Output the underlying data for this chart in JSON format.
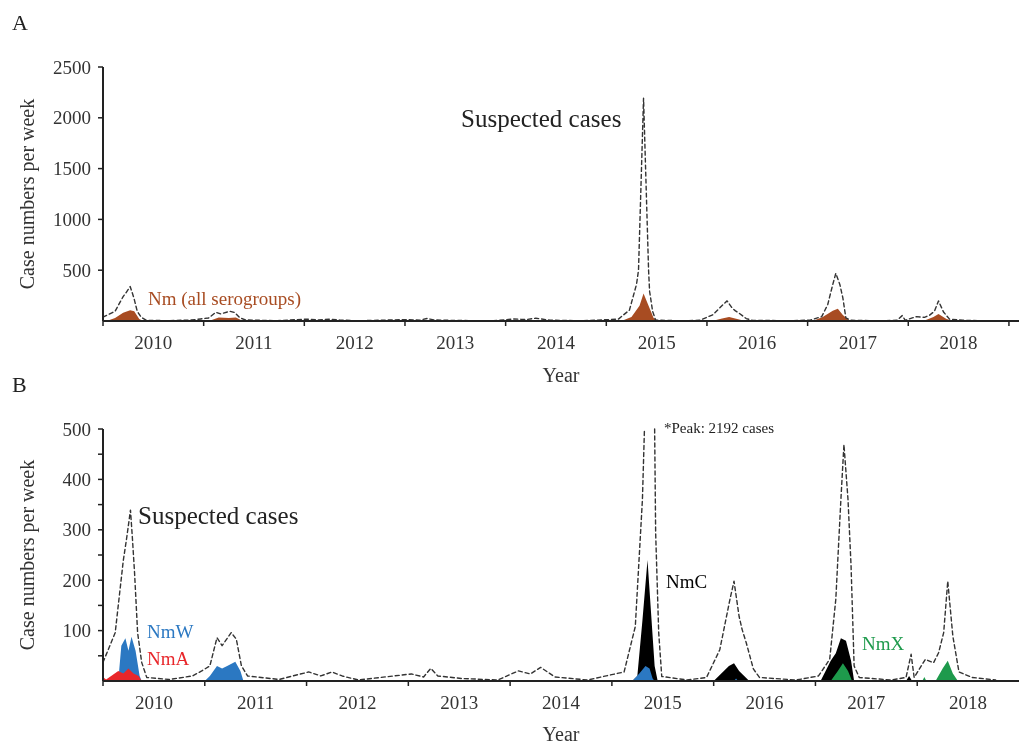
{
  "chart_data": [
    {
      "type": "area",
      "title": "A",
      "xlabel": "Year",
      "ylabel": "Case numbers per week",
      "xlim": [
        2010,
        2019.1
      ],
      "ylim": [
        0,
        2500
      ],
      "xticks": [
        {
          "value": 2010,
          "label": null
        },
        {
          "value": 2010.5,
          "label": "2010"
        },
        {
          "value": 2011,
          "label": null
        },
        {
          "value": 2011.5,
          "label": "2011"
        },
        {
          "value": 2012,
          "label": null
        },
        {
          "value": 2012.5,
          "label": "2012"
        },
        {
          "value": 2013,
          "label": null
        },
        {
          "value": 2013.5,
          "label": "2013"
        },
        {
          "value": 2014,
          "label": null
        },
        {
          "value": 2014.5,
          "label": "2014"
        },
        {
          "value": 2015,
          "label": null
        },
        {
          "value": 2015.5,
          "label": "2015"
        },
        {
          "value": 2016,
          "label": null
        },
        {
          "value": 2016.5,
          "label": "2016"
        },
        {
          "value": 2017,
          "label": null
        },
        {
          "value": 2017.5,
          "label": "2017"
        },
        {
          "value": 2018,
          "label": null
        },
        {
          "value": 2018.5,
          "label": "2018"
        },
        {
          "value": 2019,
          "label": null
        }
      ],
      "yticks": [
        500,
        1000,
        1500,
        2000,
        2500
      ],
      "series": [
        {
          "name": "Nm (all serogroups)",
          "color": "#a84c22",
          "x": [
            2010,
            2010.05,
            2010.12,
            2010.2,
            2010.27,
            2010.31,
            2010.36,
            2010.4,
            2011.04,
            2011.08,
            2011.15,
            2011.25,
            2011.32,
            2011.38,
            2011.42,
            2015.15,
            2015.25,
            2015.33,
            2015.37,
            2015.42,
            2015.47,
            2015.52,
            2016.05,
            2016.15,
            2016.22,
            2016.3,
            2016.38,
            2017.05,
            2017.15,
            2017.25,
            2017.3,
            2017.35,
            2017.42,
            2018.15,
            2018.25,
            2018.3,
            2018.38,
            2018.45
          ],
          "values": [
            0,
            5,
            30,
            80,
            105,
            95,
            20,
            0,
            0,
            10,
            35,
            30,
            35,
            5,
            0,
            0,
            40,
            150,
            270,
            150,
            30,
            0,
            0,
            25,
            40,
            20,
            0,
            0,
            40,
            100,
            120,
            60,
            0,
            0,
            40,
            70,
            20,
            0
          ]
        },
        {
          "name": "Suspected cases",
          "type": "line",
          "line_style": "dashed",
          "color": "#333333",
          "x": [
            2010,
            2010.12,
            2010.2,
            2010.23,
            2010.27,
            2010.29,
            2010.31,
            2010.34,
            2010.38,
            2010.43,
            2010.65,
            2010.88,
            2010.97,
            2011.05,
            2011.12,
            2011.17,
            2011.26,
            2011.31,
            2011.36,
            2011.42,
            2011.73,
            2012.02,
            2012.14,
            2012.25,
            2012.35,
            2012.51,
            2013.03,
            2013.15,
            2013.22,
            2013.29,
            2013.52,
            2013.88,
            2014.08,
            2014.2,
            2014.3,
            2014.44,
            2014.76,
            2015.12,
            2015.23,
            2015.3,
            2015.32,
            2015.37,
            2015.42,
            2015.43,
            2015.46,
            2015.49,
            2015.74,
            2015.93,
            2016.06,
            2016.16,
            2016.2,
            2016.25,
            2016.28,
            2016.32,
            2016.39,
            2016.45,
            2016.81,
            2017.03,
            2017.14,
            2017.2,
            2017.25,
            2017.28,
            2017.32,
            2017.35,
            2017.38,
            2017.43,
            2017.74,
            2017.89,
            2017.94,
            2017.97,
            2018.04,
            2018.08,
            2018.16,
            2018.21,
            2018.26,
            2018.3,
            2018.35,
            2018.41,
            2018.54,
            2018.77
          ],
          "values": [
            37,
            96,
            240,
            280,
            339,
            280,
            215,
            96,
            37,
            7,
            3,
            10,
            20,
            30,
            86,
            70,
            96,
            83,
            30,
            10,
            3,
            18,
            10,
            18,
            10,
            2,
            14,
            8,
            25,
            10,
            5,
            2,
            20,
            14,
            27,
            8,
            2,
            18,
            108,
            360,
            500,
            2192,
            500,
            294,
            96,
            9,
            2,
            7,
            62,
            162,
            198,
            128,
            102,
            76,
            24,
            7,
            2,
            10,
            43,
            162,
            360,
            469,
            360,
            228,
            30,
            7,
            2,
            7,
            53,
            7,
            30,
            43,
            36,
            56,
            96,
            198,
            89,
            18,
            7,
            2
          ]
        }
      ]
    },
    {
      "type": "area",
      "title": "B",
      "xlabel": "Year",
      "ylabel": "Case numbers per week",
      "annotations": [
        "*Peak: 2192 cases"
      ],
      "xlim": [
        2010,
        2019
      ],
      "ylim": [
        0,
        500
      ],
      "xticks": [
        {
          "value": 2010,
          "label": null
        },
        {
          "value": 2010.5,
          "label": "2010"
        },
        {
          "value": 2011,
          "label": null
        },
        {
          "value": 2011.5,
          "label": "2011"
        },
        {
          "value": 2012,
          "label": null
        },
        {
          "value": 2012.5,
          "label": "2012"
        },
        {
          "value": 2013,
          "label": null
        },
        {
          "value": 2013.5,
          "label": "2013"
        },
        {
          "value": 2014,
          "label": null
        },
        {
          "value": 2014.5,
          "label": "2014"
        },
        {
          "value": 2015,
          "label": null
        },
        {
          "value": 2015.5,
          "label": "2015"
        },
        {
          "value": 2016,
          "label": null
        },
        {
          "value": 2016.5,
          "label": "2016"
        },
        {
          "value": 2017,
          "label": null
        },
        {
          "value": 2017.5,
          "label": "2017"
        },
        {
          "value": 2018,
          "label": null
        },
        {
          "value": 2018.5,
          "label": "2018"
        }
      ],
      "yticks": [
        {
          "value": 50,
          "label": null
        },
        100,
        {
          "value": 150,
          "label": null
        },
        200,
        {
          "value": 250,
          "label": null
        },
        300,
        {
          "value": 350,
          "label": null
        },
        400,
        {
          "value": 450,
          "label": null
        },
        500
      ],
      "series": [
        {
          "name": "NmC",
          "color": "#000000",
          "x": [
            2015.2,
            2015.25,
            2015.3,
            2015.35,
            2015.38,
            2015.42,
            2015.45,
            2016,
            2016.05,
            2016.1,
            2016.15,
            2016.2,
            2016.25,
            2016.3,
            2016.35,
            2017.05,
            2017.1,
            2017.15,
            2017.2,
            2017.25,
            2017.3,
            2017.35,
            2017.38,
            2017.89,
            2017.92,
            2017.95
          ],
          "values": [
            0,
            10,
            120,
            240,
            150,
            30,
            0,
            0,
            10,
            20,
            30,
            35,
            20,
            10,
            0,
            0,
            20,
            40,
            55,
            85,
            80,
            40,
            0,
            0,
            10,
            0
          ]
        },
        {
          "name": "NmW",
          "color": "#2b78c2",
          "x": [
            2010.15,
            2010.18,
            2010.22,
            2010.25,
            2010.28,
            2010.32,
            2010.36,
            2010.38,
            2011,
            2011.05,
            2011.12,
            2011.17,
            2011.22,
            2011.3,
            2011.35,
            2011.38,
            2015.2,
            2015.27,
            2015.33,
            2015.37,
            2015.4,
            2015.42,
            2016.2,
            2016.22,
            2016.24
          ],
          "values": [
            0,
            70,
            85,
            60,
            88,
            60,
            10,
            0,
            0,
            10,
            30,
            25,
            30,
            38,
            20,
            0,
            0,
            15,
            30,
            25,
            5,
            0,
            0,
            5,
            0
          ]
        },
        {
          "name": "NmA",
          "color": "#e8262a",
          "x": [
            2010,
            2010.03,
            2010.08,
            2010.15,
            2010.2,
            2010.25,
            2010.3,
            2010.35,
            2010.38
          ],
          "values": [
            8,
            3,
            10,
            20,
            15,
            25,
            15,
            10,
            0
          ]
        },
        {
          "name": "NmX",
          "color": "#1e9a4c",
          "x": [
            2017.15,
            2017.22,
            2017.27,
            2017.32,
            2017.36,
            2018.05,
            2018.07,
            2018.09,
            2018.18,
            2018.25,
            2018.3,
            2018.35,
            2018.4
          ],
          "values": [
            0,
            20,
            35,
            20,
            0,
            0,
            8,
            0,
            0,
            25,
            40,
            15,
            0
          ]
        },
        {
          "name": "Suspected cases",
          "type": "line",
          "line_style": "dashed",
          "color": "#333333",
          "x": [
            2010,
            2010.12,
            2010.2,
            2010.23,
            2010.27,
            2010.29,
            2010.31,
            2010.34,
            2010.38,
            2010.43,
            2010.65,
            2010.88,
            2010.97,
            2011.05,
            2011.12,
            2011.17,
            2011.26,
            2011.31,
            2011.36,
            2011.42,
            2011.73,
            2012.02,
            2012.14,
            2012.25,
            2012.35,
            2012.51,
            2013.03,
            2013.15,
            2013.22,
            2013.29,
            2013.52,
            2013.88,
            2014.08,
            2014.2,
            2014.3,
            2014.44,
            2014.76,
            2015.12,
            2015.23,
            2015.3,
            2015.32,
            2015.37,
            2015.42,
            2015.43,
            2015.46,
            2015.49,
            2015.74,
            2015.93,
            2016.06,
            2016.16,
            2016.2,
            2016.25,
            2016.28,
            2016.32,
            2016.39,
            2016.45,
            2016.81,
            2017.03,
            2017.14,
            2017.2,
            2017.25,
            2017.28,
            2017.32,
            2017.35,
            2017.38,
            2017.43,
            2017.74,
            2017.89,
            2017.94,
            2017.97,
            2018.04,
            2018.08,
            2018.16,
            2018.21,
            2018.26,
            2018.3,
            2018.35,
            2018.41,
            2018.54,
            2018.77
          ],
          "values": [
            37,
            96,
            240,
            280,
            339,
            280,
            215,
            96,
            37,
            7,
            3,
            10,
            20,
            30,
            86,
            70,
            96,
            83,
            30,
            10,
            3,
            18,
            10,
            18,
            10,
            2,
            14,
            8,
            25,
            10,
            5,
            2,
            20,
            14,
            27,
            8,
            2,
            18,
            108,
            360,
            500,
            null,
            500,
            294,
            96,
            9,
            2,
            7,
            62,
            162,
            198,
            128,
            102,
            76,
            24,
            7,
            2,
            10,
            43,
            162,
            360,
            469,
            360,
            228,
            30,
            7,
            2,
            7,
            53,
            7,
            30,
            43,
            36,
            56,
            96,
            198,
            89,
            18,
            7,
            2
          ]
        }
      ]
    }
  ]
}
